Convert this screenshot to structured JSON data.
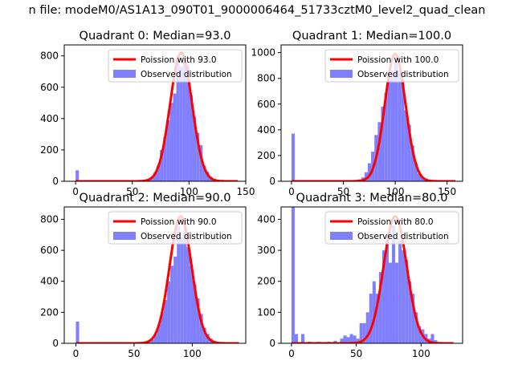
{
  "figure": {
    "suptitle": "n file: modeM0/AS1A13_090T01_9000006464_51733cztM0_level2_quad_clean"
  },
  "colors": {
    "hist": "#8080ff",
    "poisson": "#ff0000",
    "background": "#ffffff",
    "axis": "#000000"
  },
  "chart_data": [
    {
      "type": "bar",
      "title": "Quadrant 0: Median=93.0",
      "legend": {
        "placement": "top-right",
        "entries": [
          "Poission with 93.0",
          "Observed distribution"
        ]
      },
      "xlim": [
        -10,
        150
      ],
      "ylim": [
        0,
        870
      ],
      "xticks": [
        0,
        50,
        100,
        150
      ],
      "xtick_labels": [
        "0",
        "50",
        "100",
        "150"
      ],
      "yticks": [
        0,
        200,
        400,
        600,
        800
      ],
      "ytick_labels": [
        "0",
        "200",
        "400",
        "600",
        "800"
      ],
      "mean": 93.0,
      "poisson_peak": 820,
      "poisson_sigma": 9.6,
      "poisson_range": [
        0,
        143
      ],
      "bin_width": 2.9,
      "bins": [
        [
          0,
          70
        ],
        [
          62.7,
          8
        ],
        [
          65.6,
          20
        ],
        [
          68.5,
          55
        ],
        [
          71.4,
          100
        ],
        [
          74.3,
          200
        ],
        [
          77.2,
          280
        ],
        [
          80.1,
          390
        ],
        [
          83.0,
          500
        ],
        [
          85.9,
          560
        ],
        [
          88.8,
          800
        ],
        [
          91.7,
          730
        ],
        [
          94.6,
          760
        ],
        [
          97.5,
          740
        ],
        [
          100.4,
          550
        ],
        [
          103.3,
          410
        ],
        [
          106.2,
          310
        ],
        [
          109.1,
          230
        ],
        [
          112.0,
          100
        ],
        [
          114.9,
          60
        ],
        [
          117.8,
          30
        ],
        [
          120.7,
          15
        ],
        [
          123.6,
          5
        ]
      ]
    },
    {
      "type": "bar",
      "title": "Quadrant 1: Median=100.0",
      "legend": {
        "placement": "top-right",
        "entries": [
          "Poission with 100.0",
          "Observed distribution"
        ]
      },
      "xlim": [
        -10,
        165
      ],
      "ylim": [
        0,
        1060
      ],
      "xticks": [
        0,
        50,
        100,
        150
      ],
      "xtick_labels": [
        "0",
        "50",
        "100",
        "150"
      ],
      "yticks": [
        0,
        200,
        400,
        600,
        800,
        1000
      ],
      "ytick_labels": [
        "0",
        "200",
        "400",
        "600",
        "800",
        "1000"
      ],
      "mean": 100.0,
      "poisson_peak": 990,
      "poisson_sigma": 10.0,
      "poisson_range": [
        0,
        158
      ],
      "bin_width": 3.2,
      "bins": [
        [
          0,
          370
        ],
        [
          41.6,
          3
        ],
        [
          57.6,
          5
        ],
        [
          60.8,
          10
        ],
        [
          64.0,
          15
        ],
        [
          67.2,
          30
        ],
        [
          70.4,
          70
        ],
        [
          73.6,
          140
        ],
        [
          76.8,
          230
        ],
        [
          80.0,
          360
        ],
        [
          83.2,
          460
        ],
        [
          86.4,
          580
        ],
        [
          89.6,
          690
        ],
        [
          92.8,
          800
        ],
        [
          96.0,
          860
        ],
        [
          99.2,
          930
        ],
        [
          102.4,
          860
        ],
        [
          105.6,
          790
        ],
        [
          108.8,
          550
        ],
        [
          112.0,
          440
        ],
        [
          115.2,
          280
        ],
        [
          118.4,
          140
        ],
        [
          121.6,
          60
        ],
        [
          124.8,
          30
        ],
        [
          128.0,
          15
        ],
        [
          131.2,
          5
        ]
      ]
    },
    {
      "type": "bar",
      "title": "Quadrant 2: Median=90.0",
      "legend": {
        "placement": "top-right",
        "entries": [
          "Poission with 90.0",
          "Observed distribution"
        ]
      },
      "xlim": [
        -10,
        146
      ],
      "ylim": [
        0,
        880
      ],
      "xticks": [
        0,
        50,
        100
      ],
      "xtick_labels": [
        "0",
        "50",
        "100"
      ],
      "yticks": [
        0,
        200,
        400,
        600,
        800
      ],
      "ytick_labels": [
        "0",
        "200",
        "400",
        "600",
        "800"
      ],
      "mean": 90.0,
      "poisson_peak": 820,
      "poisson_sigma": 9.5,
      "poisson_range": [
        0,
        140
      ],
      "bin_width": 2.8,
      "bins": [
        [
          0,
          140
        ],
        [
          58.8,
          3
        ],
        [
          61.6,
          10
        ],
        [
          64.4,
          25
        ],
        [
          67.2,
          60
        ],
        [
          70.0,
          120
        ],
        [
          72.8,
          200
        ],
        [
          75.6,
          280
        ],
        [
          78.4,
          400
        ],
        [
          81.2,
          500
        ],
        [
          84.0,
          560
        ],
        [
          86.8,
          760
        ],
        [
          89.6,
          680
        ],
        [
          92.4,
          740
        ],
        [
          95.2,
          620
        ],
        [
          98.0,
          500
        ],
        [
          100.8,
          380
        ],
        [
          103.6,
          290
        ],
        [
          106.4,
          190
        ],
        [
          109.2,
          100
        ],
        [
          112.0,
          60
        ],
        [
          114.8,
          30
        ],
        [
          117.6,
          10
        ],
        [
          120.4,
          5
        ]
      ]
    },
    {
      "type": "bar",
      "title": "Quadrant 3: Median=80.0",
      "legend": {
        "placement": "top-right",
        "entries": [
          "Poission with 80.0",
          "Observed distribution"
        ]
      },
      "xlim": [
        -8,
        132
      ],
      "ylim": [
        0,
        440
      ],
      "xticks": [
        0,
        50,
        100
      ],
      "xtick_labels": [
        "0",
        "50",
        "100"
      ],
      "yticks": [
        0,
        100,
        200,
        300,
        400
      ],
      "ytick_labels": [
        "0",
        "100",
        "200",
        "300",
        "400"
      ],
      "mean": 80.0,
      "poisson_peak": 410,
      "poisson_sigma": 9.0,
      "poisson_range": [
        0,
        125
      ],
      "bin_width": 2.5,
      "bins": [
        [
          0,
          440
        ],
        [
          2.5,
          30
        ],
        [
          7.5,
          30
        ],
        [
          12.5,
          5
        ],
        [
          20,
          5
        ],
        [
          27.5,
          5
        ],
        [
          32.5,
          8
        ],
        [
          37.5,
          15
        ],
        [
          40,
          25
        ],
        [
          42.5,
          20
        ],
        [
          45,
          30
        ],
        [
          47.5,
          25
        ],
        [
          50,
          15
        ],
        [
          52.5,
          65
        ],
        [
          55,
          65
        ],
        [
          57.5,
          100
        ],
        [
          60,
          160
        ],
        [
          62.5,
          200
        ],
        [
          65,
          160
        ],
        [
          67.5,
          230
        ],
        [
          70,
          300
        ],
        [
          72.5,
          330
        ],
        [
          75,
          260
        ],
        [
          77.5,
          380
        ],
        [
          80,
          260
        ],
        [
          82.5,
          330
        ],
        [
          85,
          300
        ],
        [
          87.5,
          270
        ],
        [
          90,
          200
        ],
        [
          92.5,
          160
        ],
        [
          95,
          100
        ],
        [
          97.5,
          55
        ],
        [
          100,
          45
        ],
        [
          102.5,
          30
        ],
        [
          105,
          15
        ],
        [
          107.5,
          30
        ],
        [
          110,
          10
        ]
      ]
    }
  ]
}
